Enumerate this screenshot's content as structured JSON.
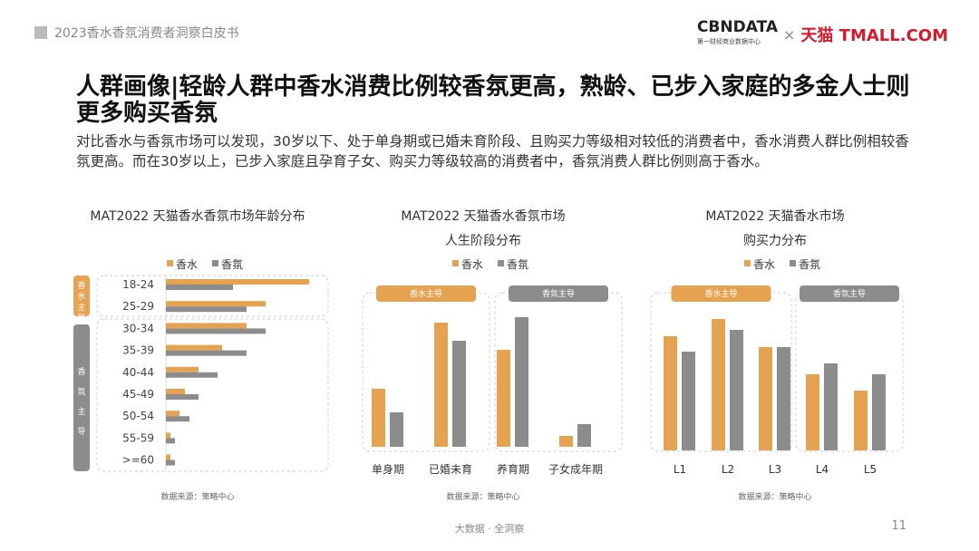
{
  "header": {
    "report_title": "2023香水香氛消费者洞察白皮书",
    "logo_left": "CBNDATA",
    "logo_left_sub": "第一财经商业数据中心",
    "logo_x": "×",
    "logo_right": "天猫 TMALL.COM"
  },
  "title": "人群画像|轻龄人群中香水消费比例较香氛更高，熟龄、已步入家庭的多金人士则更多购买香氛",
  "description": "对比香水与香氛市场可以发现，30岁以下、处于单身期或已婚未育阶段、且购买力等级相对较低的消费者中，香水消费人群比例相较香氛更高。而在30岁以上，已步入家庭且孕育子女、购买力等级较高的消费者中，香氛消费人群比例则高于香水。",
  "colors": {
    "perfume": "#E5A352",
    "fragrance": "#8C8C8C"
  },
  "footer": {
    "center": "大数据 · 全洞察",
    "page": "11"
  },
  "chart_data": [
    {
      "type": "bar",
      "orientation": "horizontal",
      "title": "MAT2022 天猫香水香氛市场年龄分布",
      "legend": [
        "香水",
        "香氛"
      ],
      "legend_position": "top",
      "group_labels": [
        "香水主导",
        "香氛主导"
      ],
      "categories": [
        "18-24",
        "25-29",
        "30-34",
        "35-39",
        "40-44",
        "45-49",
        "50-54",
        "55-59",
        ">=60"
      ],
      "series": [
        {
          "name": "香水",
          "values": [
            31.6,
            22,
            17.8,
            12.4,
            7.2,
            4.2,
            3,
            1,
            1
          ]
        },
        {
          "name": "香氛",
          "values": [
            14.8,
            17.8,
            22,
            17.8,
            11.4,
            7.2,
            5.2,
            2,
            2
          ]
        }
      ],
      "source": "数据来源：策略中心"
    },
    {
      "type": "bar",
      "title": "MAT2022 天猫香水香氛市场",
      "subtitle": "人生阶段分布",
      "legend": [
        "香水",
        "香氛"
      ],
      "legend_position": "top",
      "group_labels": [
        "香水主导",
        "香氛主导"
      ],
      "categories": [
        "单身期",
        "已婚未育",
        "养育期",
        "子女成年期"
      ],
      "series": [
        {
          "name": "香水",
          "values": [
            12.8,
            27.4,
            21.4,
            2.4
          ]
        },
        {
          "name": "香氛",
          "values": [
            7.6,
            23.4,
            28.6,
            5
          ]
        }
      ],
      "source": "数据来源：策略中心"
    },
    {
      "type": "bar",
      "title": "MAT2022 天猫香水市场",
      "subtitle": "购买力分布",
      "legend": [
        "香水",
        "香氛"
      ],
      "legend_position": "top",
      "group_labels": [
        "香水主导",
        "香氛主导"
      ],
      "categories": [
        "L1",
        "L2",
        "L3",
        "L4",
        "L5"
      ],
      "series": [
        {
          "name": "香水",
          "values": [
            25.2,
            29,
            22.8,
            16.8,
            13.2
          ]
        },
        {
          "name": "香氛",
          "values": [
            21.8,
            26.6,
            22.8,
            19.2,
            16.8
          ]
        }
      ],
      "source": "数据来源：策略中心"
    }
  ]
}
